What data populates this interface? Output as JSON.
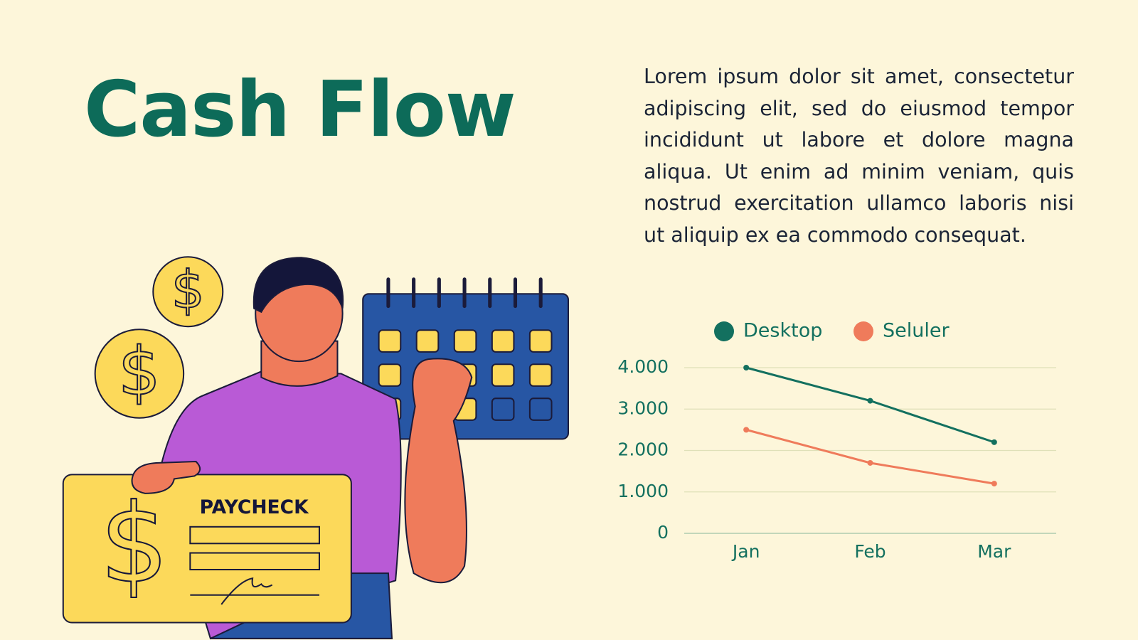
{
  "title": "Cash Flow",
  "paragraph": "Lorem ipsum dolor sit amet, consectetur adipiscing elit, sed do eiusmod tempor incididunt ut labore et dolore magna aliqua. Ut enim ad minim veniam, quis nostrud exercitation ullamco laboris nisi ut aliquip ex ea commodo consequat.",
  "illustration": {
    "paycheck_label": "PAYCHECK",
    "symbol": "$"
  },
  "chart_data": {
    "type": "line",
    "categories": [
      "Jan",
      "Feb",
      "Mar"
    ],
    "series": [
      {
        "name": "Desktop",
        "color": "#13705f",
        "values": [
          4000,
          3200,
          2200
        ]
      },
      {
        "name": "Seluler",
        "color": "#ef7b5b",
        "values": [
          2500,
          1700,
          1200
        ]
      }
    ],
    "ylim": [
      0,
      4000
    ],
    "yticks": [
      0,
      {
        "value": 1000,
        "label": "1.000"
      },
      {
        "value": 2000,
        "label": "2.000"
      },
      {
        "value": 3000,
        "label": "3.000"
      },
      {
        "value": 4000,
        "label": "4.000"
      }
    ],
    "grid": true,
    "legend": "top"
  }
}
